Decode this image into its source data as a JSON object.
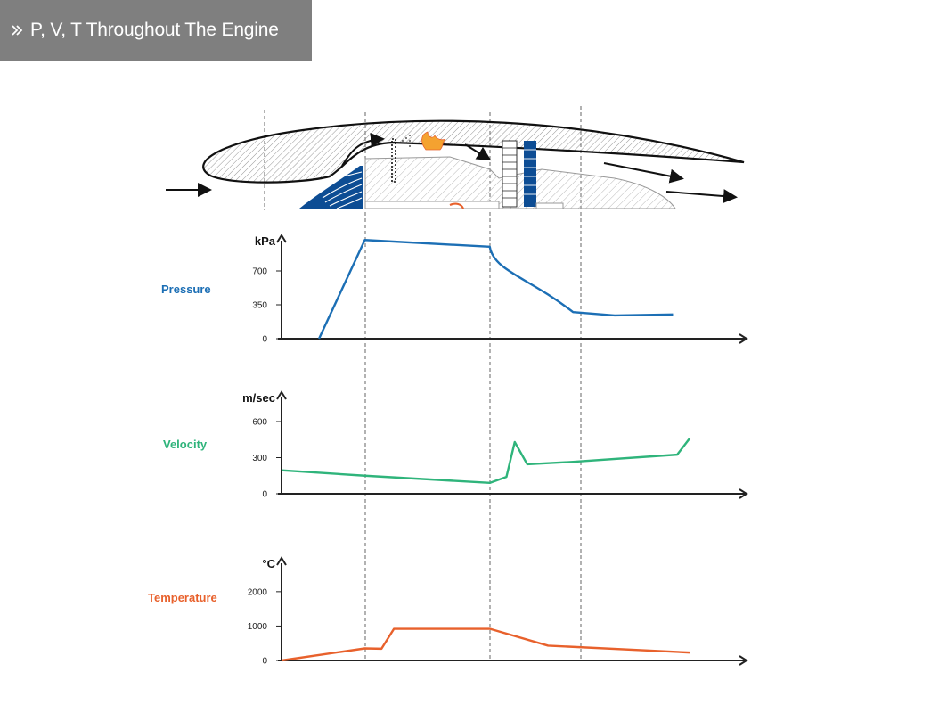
{
  "header": {
    "title": "P, V, T Throughout The Engine"
  },
  "colors": {
    "pressure": "#1c6fb5",
    "velocity": "#2fb47b",
    "temperature": "#e8612c",
    "engine_blue": "#0d4d94",
    "title_bg": "#7f7f7f"
  },
  "icons": {
    "header": "double-chevron-right-icon"
  },
  "chart_data": [
    {
      "type": "line",
      "series": [
        {
          "name": "Pressure",
          "x": [
            0.45,
            1.0,
            2.5,
            2.75,
            3.0,
            3.5,
            4.0,
            4.7
          ],
          "values": [
            0,
            1020,
            950,
            900,
            560,
            275,
            240,
            250
          ]
        }
      ],
      "ylabel": "kPa",
      "yticks": [
        0,
        350,
        700
      ],
      "ylim": [
        0,
        1050
      ],
      "xlim": [
        0,
        5.6
      ]
    },
    {
      "type": "line",
      "series": [
        {
          "name": "Velocity",
          "x": [
            0,
            1.0,
            2.5,
            2.7,
            2.8,
            2.95,
            3.5,
            4.75,
            4.9
          ],
          "values": [
            195,
            150,
            90,
            140,
            430,
            245,
            265,
            325,
            460
          ]
        }
      ],
      "ylabel": "m/sec",
      "yticks": [
        0,
        300,
        600
      ],
      "ylim": [
        0,
        800
      ],
      "xlim": [
        0,
        5.6
      ]
    },
    {
      "type": "line",
      "series": [
        {
          "name": "Temperature",
          "x": [
            0,
            1.0,
            1.2,
            1.35,
            2.5,
            3.2,
            4.9
          ],
          "values": [
            0,
            350,
            340,
            920,
            920,
            430,
            230
          ]
        }
      ],
      "ylabel": "°C",
      "yticks": [
        0,
        1000,
        2000
      ],
      "ylim": [
        0,
        2800
      ],
      "xlim": [
        0,
        5.6
      ]
    }
  ]
}
